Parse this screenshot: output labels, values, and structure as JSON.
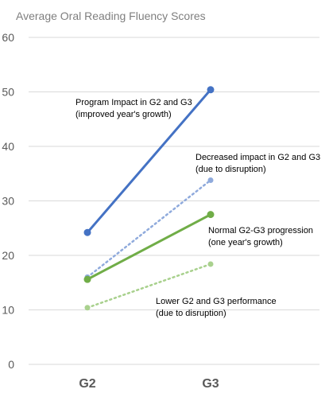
{
  "chart_data": {
    "type": "line",
    "title": "Average Oral Reading Fluency Scores",
    "xlabel": "",
    "ylabel": "",
    "categories": [
      "G2",
      "G3"
    ],
    "ylim": [
      0,
      60
    ],
    "yticks": [
      0,
      10,
      20,
      30,
      40,
      50,
      60
    ],
    "grid": true,
    "legend": "none",
    "series": [
      {
        "values": [
          24.2,
          50.4
        ],
        "color": "#4472c4",
        "style": "solid",
        "annotation": [
          "Program Impact in G2 and G3",
          "(improved year's growth)"
        ]
      },
      {
        "values": [
          16.0,
          33.8
        ],
        "color": "#8faadc",
        "style": "dotted",
        "annotation": [
          "Decreased impact in G2 and G3",
          "(due to disruption)"
        ]
      },
      {
        "values": [
          15.6,
          27.5
        ],
        "color": "#70ad47",
        "style": "solid",
        "annotation": [
          "Normal G2-G3 progression",
          "(one year's growth)"
        ]
      },
      {
        "values": [
          10.4,
          18.4
        ],
        "color": "#a9d18e",
        "style": "dotted",
        "annotation": [
          "Lower G2 and G3 performance",
          "(due to disruption)"
        ]
      }
    ]
  }
}
